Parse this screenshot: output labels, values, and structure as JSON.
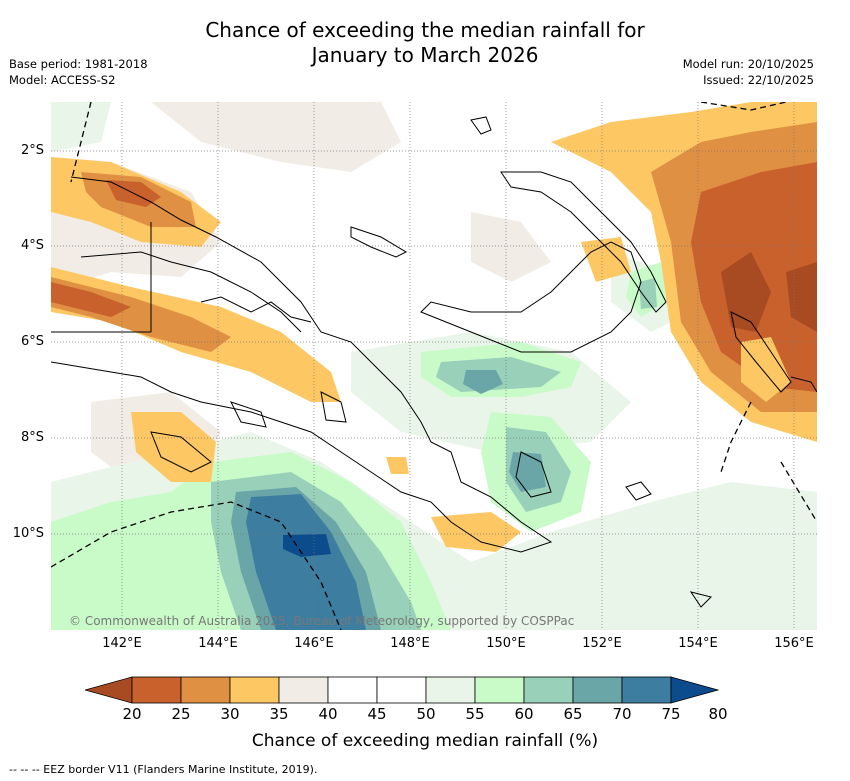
{
  "title": {
    "line1": "Chance of exceeding the median rainfall for",
    "line2": "January to March 2026"
  },
  "meta_left": {
    "base_period": "Base period: 1981-2018",
    "model": "Model: ACCESS-S2"
  },
  "meta_right": {
    "model_run": "Model run: 20/10/2025",
    "issued": "Issued: 22/10/2025"
  },
  "map": {
    "lat_labels": [
      "2°S",
      "4°S",
      "6°S",
      "8°S",
      "10°S"
    ],
    "lon_labels": [
      "142°E",
      "144°E",
      "146°E",
      "148°E",
      "150°E",
      "152°E",
      "154°E",
      "156°E"
    ],
    "copyright": "© Commonwealth of Australia 2025, Bureau of Meteorology, supported by COSPPac"
  },
  "colorbar": {
    "ticks": [
      "20",
      "25",
      "30",
      "35",
      "40",
      "45",
      "50",
      "55",
      "60",
      "65",
      "70",
      "75",
      "80"
    ],
    "colors": [
      "#a84a22",
      "#c9612c",
      "#df9043",
      "#fdc864",
      "#f1ede6",
      "#ffffff",
      "#ffffff",
      "#e8f5e8",
      "#c9fbc9",
      "#99d0b9",
      "#6aa6a8",
      "#3d7ea0",
      "#0c4b8c"
    ],
    "label": "Chance of exceeding median rainfall (%)"
  },
  "legend": {
    "eez": "-- -- -- EEZ border V11 (Flanders Marine Institute, 2019)."
  }
}
